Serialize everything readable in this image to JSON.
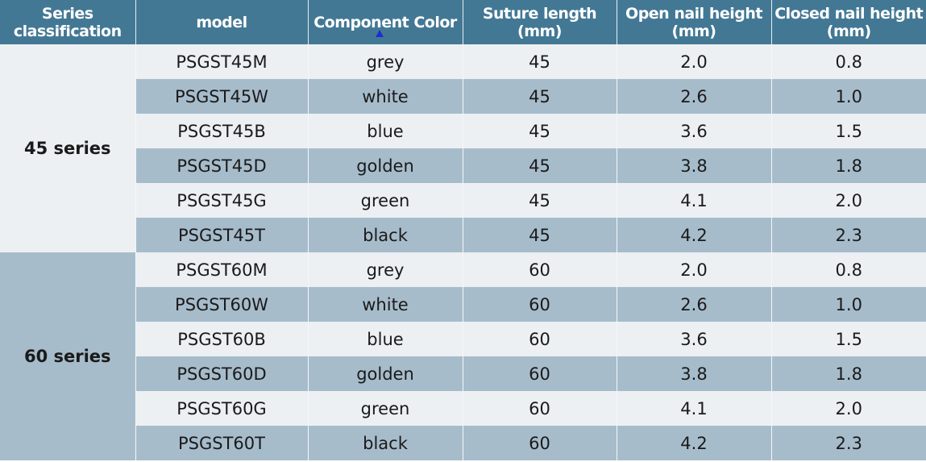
{
  "headers": [
    "Series classification",
    "model",
    "Component Color",
    "Suture length (mm)",
    "Open nail height (mm)",
    "Closed nail height (mm)"
  ],
  "groups": [
    {
      "series": "45 series",
      "rows": [
        [
          "PSGST45M",
          "grey",
          "45",
          "2.0",
          "0.8"
        ],
        [
          "PSGST45W",
          "white",
          "45",
          "2.6",
          "1.0"
        ],
        [
          "PSGST45B",
          "blue",
          "45",
          "3.6",
          "1.5"
        ],
        [
          "PSGST45D",
          "golden",
          "45",
          "3.8",
          "1.8"
        ],
        [
          "PSGST45G",
          "green",
          "45",
          "4.1",
          "2.0"
        ],
        [
          "PSGST45T",
          "black",
          "45",
          "4.2",
          "2.3"
        ]
      ]
    },
    {
      "series": "60 series",
      "rows": [
        [
          "PSGST60M",
          "grey",
          "60",
          "2.0",
          "0.8"
        ],
        [
          "PSGST60W",
          "white",
          "60",
          "2.6",
          "1.0"
        ],
        [
          "PSGST60B",
          "blue",
          "60",
          "3.6",
          "1.5"
        ],
        [
          "PSGST60D",
          "golden",
          "60",
          "3.8",
          "1.8"
        ],
        [
          "PSGST60G",
          "green",
          "60",
          "4.1",
          "2.0"
        ],
        [
          "PSGST60T",
          "black",
          "60",
          "4.2",
          "2.3"
        ]
      ]
    }
  ],
  "colors": {
    "header": "#437895",
    "row_light": "#ecf0f3",
    "row_dark": "#a7bccb"
  }
}
